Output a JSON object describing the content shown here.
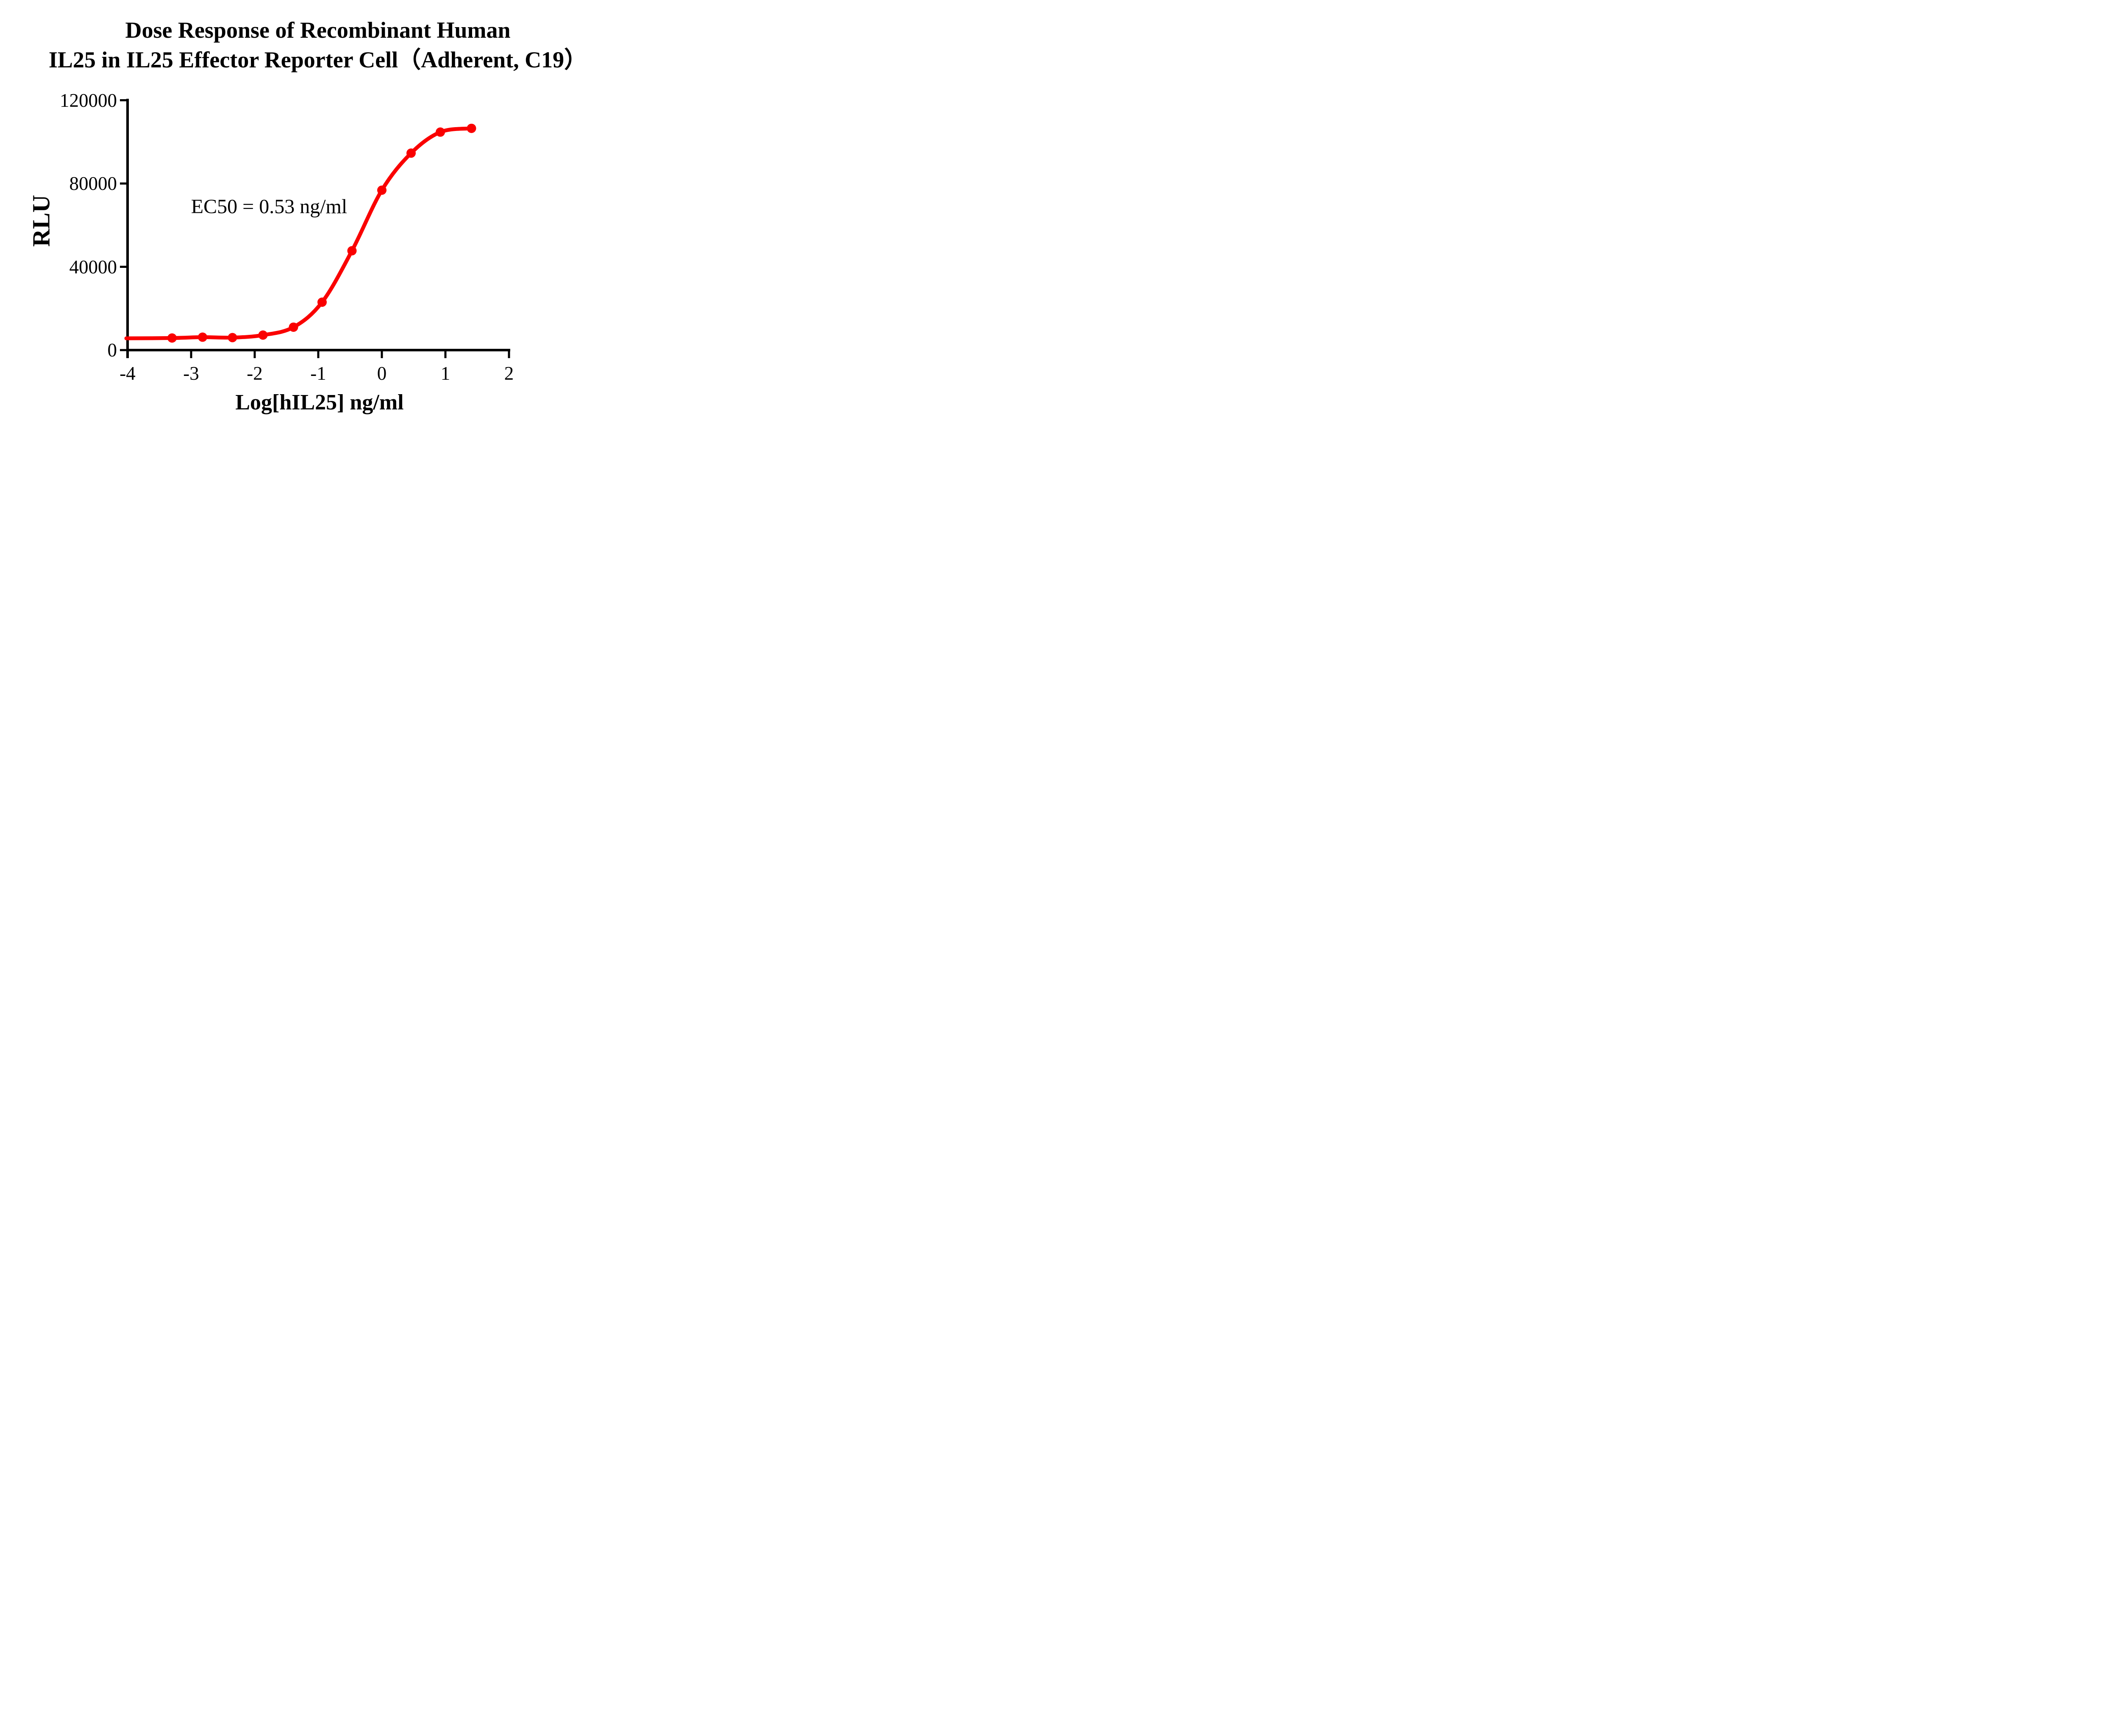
{
  "title": {
    "line1": "Dose Response of Recombinant Human",
    "line2": "IL25 in IL25 Effector Reporter Cell（Adherent, C19）"
  },
  "annotation": {
    "ec50_text": "EC50 = 0.53 ng/ml"
  },
  "axes": {
    "y_title": "RLU",
    "x_title": "Log[hIL25] ng/ml"
  },
  "colors": {
    "curve": "#FA0000",
    "axis": "#000000",
    "text": "#000000",
    "background": "#FFFFFF"
  },
  "chart_data": {
    "type": "scatter",
    "title": "Dose Response of Recombinant Human IL25 in IL25 Effector Reporter Cell（Adherent, C19）",
    "xlabel": "Log[hIL25] ng/ml",
    "ylabel": "RLU",
    "xlim": [
      -4,
      2
    ],
    "ylim": [
      0,
      120000
    ],
    "x_ticks": [
      -4,
      -3,
      -2,
      -1,
      0,
      1,
      2
    ],
    "x_tick_labels": [
      "-4",
      "-3",
      "-2",
      "-1",
      "0",
      "1",
      "2"
    ],
    "y_ticks": [
      0,
      40000,
      80000,
      120000
    ],
    "y_tick_labels": [
      "0",
      "40000",
      "80000",
      "120000"
    ],
    "grid": false,
    "legend": "none",
    "annotation": "EC50 = 0.53 ng/ml",
    "series": [
      {
        "marker": "circle",
        "color": "#FA0000",
        "x": [
          -3.3,
          -2.82,
          -2.35,
          -1.87,
          -1.39,
          -0.94,
          -0.47,
          0.0,
          0.46,
          0.92,
          1.41
        ],
        "y": [
          5800,
          6200,
          6000,
          7200,
          11000,
          23000,
          47700,
          76800,
          94600,
          104700,
          106500
        ]
      }
    ],
    "fit_curve": {
      "shape": "sigmoidal",
      "x_start": -4.02,
      "y_start": 5650,
      "x_end": 1.41,
      "ec50_ng_ml": 0.53
    }
  }
}
